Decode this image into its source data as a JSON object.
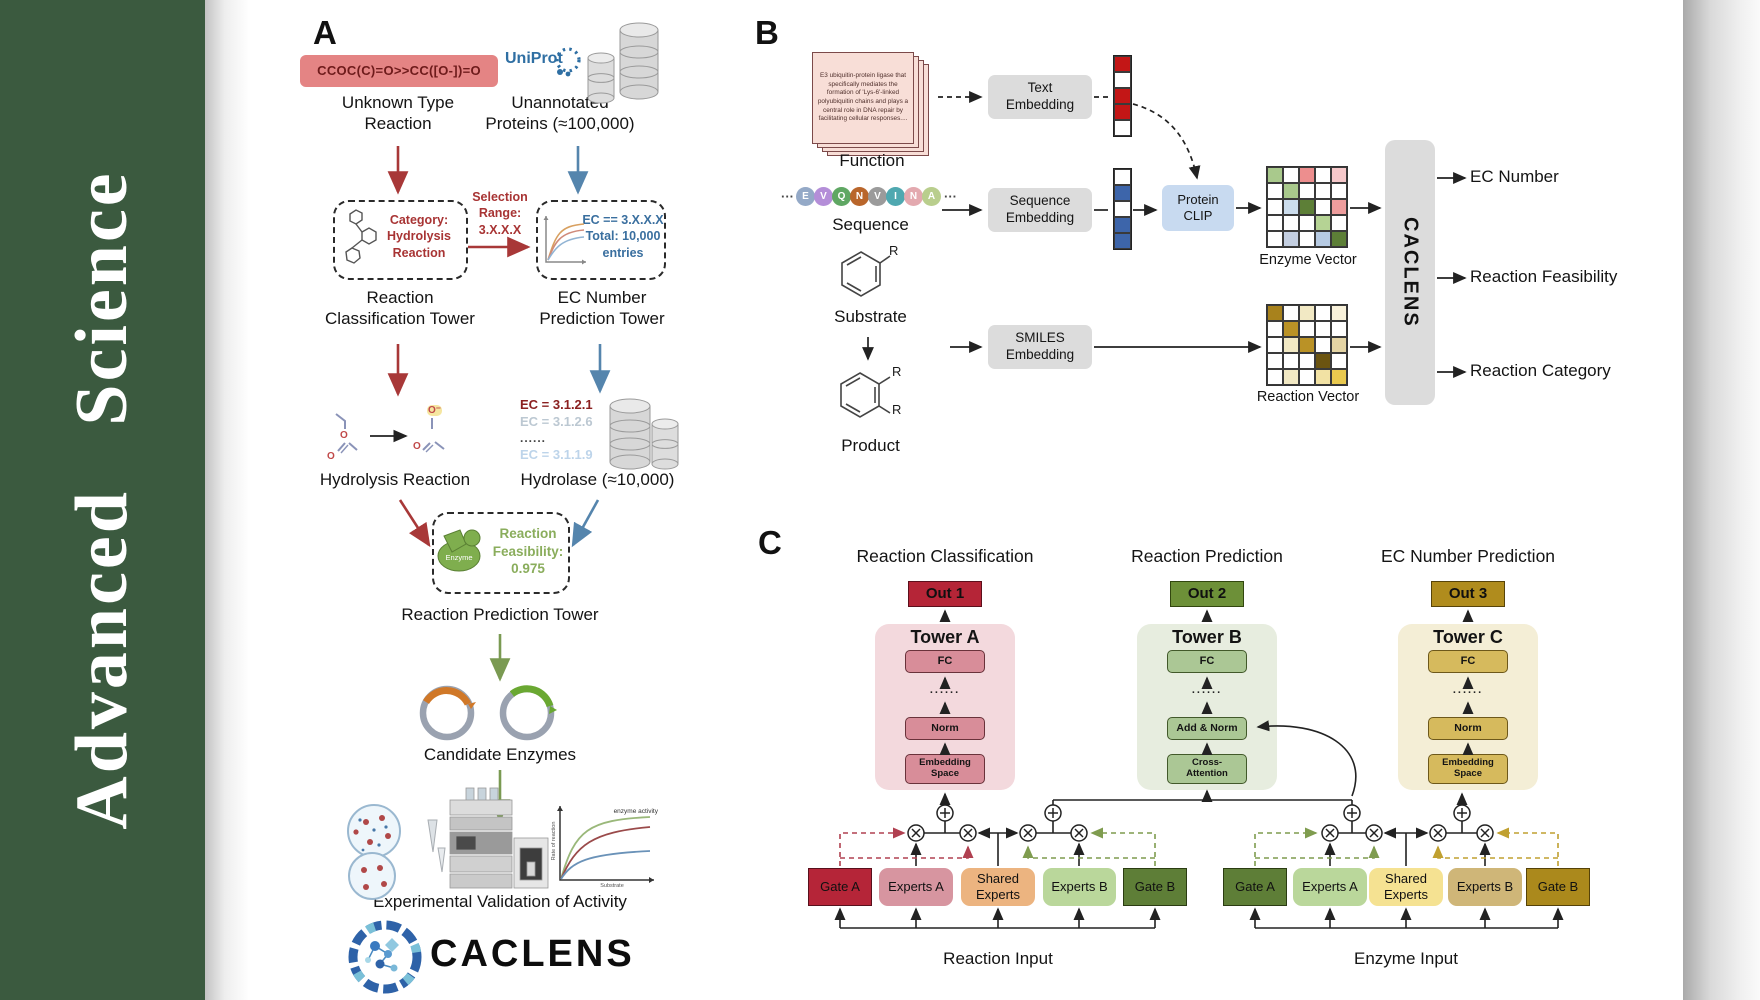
{
  "palette": {
    "banner_green": "#3b5a3f",
    "smiles_red": "#e48484",
    "arrow_red": "#a83838",
    "arrow_blue": "#5585ad",
    "arrow_green": "#7a9a52",
    "uniprot_blue": "#2f6fa3",
    "clip_blue": "#c8daf0",
    "tower_a_pink": "#f3d9dd",
    "tower_b_green": "#e7eddf",
    "tower_c_gold": "#f4eed6",
    "out1_red": "#b52537",
    "out2_green": "#6d9038",
    "out3_gold": "#b08c1d"
  },
  "banner": {
    "title": "Advanced Science"
  },
  "panelA": {
    "label": "A",
    "smiles": "CCOC(C)=O>>CC([O-])=O",
    "uniprot": "UniProt",
    "unknown": "Unknown Type\nReaction",
    "unannotated": "Unannotated\nProteins (≈100,000)",
    "category_box": "Category:\nHydrolysis\nReaction",
    "selection": "Selection\nRange:\n3.X.X.X",
    "ec_box": "EC == 3.X.X.X\nTotal: 10,000\nentries",
    "class_tower": "Reaction\nClassification Tower",
    "ec_tower": "EC Number\nPrediction Tower",
    "ec1": "EC = 3.1.2.1",
    "ec2": "EC = 3.1.2.6",
    "ec_dots": "......",
    "ec3": "EC = 3.1.1.9",
    "hydrolysis": "Hydrolysis Reaction",
    "hydrolase": "Hydrolase (≈10,000)",
    "enzyme": "Enzyme",
    "feasibility": "Reaction\nFeasibility:\n0.975",
    "pred_tower": "Reaction Prediction Tower",
    "candidates": "Candidate Enzymes",
    "validation": "Experimental Validation of Activity",
    "logo": "CACLENS",
    "atom_o": "O",
    "atom_o_minus": "O⁻",
    "chart": {
      "curve": "enzyme activity",
      "y": "Rate of reaction",
      "x": "Substrate"
    }
  },
  "panelB": {
    "label": "B",
    "function_card": "E3 ubiquitin-protein ligase that specifically mediates the formation of 'Lys-6'-linked polyubiquitin chains and plays a central role in DNA repair by facilitating cellular responses....",
    "function_label": "Function",
    "sequence_label": "Sequence",
    "substrate_label": "Substrate",
    "product_label": "Product",
    "ellipsis": "···",
    "r_label": "R",
    "beads": [
      {
        "letter": "E",
        "color": "#94a9c7"
      },
      {
        "letter": "V",
        "color": "#b48ed8"
      },
      {
        "letter": "Q",
        "color": "#5fa763"
      },
      {
        "letter": "N",
        "color": "#b9662b"
      },
      {
        "letter": "V",
        "color": "#9b9b9b"
      },
      {
        "letter": "I",
        "color": "#4fa8b0"
      },
      {
        "letter": "N",
        "color": "#e3a9af"
      },
      {
        "letter": "A",
        "color": "#b9ce8d"
      }
    ],
    "text_embedding": "Text\nEmbedding",
    "sequence_embedding": "Sequence\nEmbedding",
    "smiles_embedding": "SMILES\nEmbedding",
    "protein_clip": "Protein\nCLIP",
    "text_vector": [
      "#c31616",
      "#ffffff",
      "#c31616",
      "#c31616",
      "#ffffff"
    ],
    "sequence_vector": [
      "#ffffff",
      "#3d65aa",
      "#ffffff",
      "#3d65aa",
      "#3d65aa"
    ],
    "enzyme_vector_label": "Enzyme Vector",
    "reaction_vector_label": "Reaction Vector",
    "enzyme_matrix": [
      [
        "#a9c98c",
        "#ffffff",
        "#ed8e8e",
        "#ffffff",
        "#f6c8ca"
      ],
      [
        "#ffffff",
        "#a9c98c",
        "#ffffff",
        "#ffffff",
        "#ffffff"
      ],
      [
        "#ffffff",
        "#ccdded",
        "#5d7f37",
        "#ffffff",
        "#ee9d9d"
      ],
      [
        "#ffffff",
        "#ffffff",
        "#ffffff",
        "#b5d394",
        "#ffffff"
      ],
      [
        "#ffffff",
        "#c4cfe1",
        "#ffffff",
        "#b6cae2",
        "#5d7f37"
      ]
    ],
    "reaction_matrix": [
      [
        "#a8821c",
        "#ffffff",
        "#f2e9c4",
        "#ffffff",
        "#f8f1da"
      ],
      [
        "#ffffff",
        "#ba9226",
        "#ffffff",
        "#ffffff",
        "#ffffff"
      ],
      [
        "#ffffff",
        "#f2e9c4",
        "#ba9226",
        "#ffffff",
        "#e4d4a4"
      ],
      [
        "#ffffff",
        "#ffffff",
        "#ffffff",
        "#6b5410",
        "#ffffff"
      ],
      [
        "#ffffff",
        "#f2e9c4",
        "#ffffff",
        "#f2e2a4",
        "#e9c94f"
      ]
    ],
    "caclens": "CACLENS",
    "outputs": [
      "EC Number",
      "Reaction Feasibility",
      "Reaction Category"
    ]
  },
  "panelC": {
    "label": "C",
    "towers": [
      {
        "title": "Reaction Classification",
        "out": "Out 1",
        "name": "Tower A",
        "fc": "FC",
        "dots": "......",
        "mid": "Norm",
        "base": "Embedding\nSpace"
      },
      {
        "title": "Reaction Prediction",
        "out": "Out 2",
        "name": "Tower B",
        "fc": "FC",
        "dots": "......",
        "mid": "Add & Norm",
        "base": "Cross-\nAttention"
      },
      {
        "title": "EC Number Prediction",
        "out": "Out 3",
        "name": "Tower C",
        "fc": "FC",
        "dots": "......",
        "mid": "Norm",
        "base": "Embedding\nSpace"
      }
    ],
    "groups": [
      {
        "label": "Reaction Input",
        "gate_a": "Gate A",
        "experts_a": "Experts A",
        "shared": "Shared\nExperts",
        "experts_b": "Experts B",
        "gate_b": "Gate B"
      },
      {
        "label": "Enzyme Input",
        "gate_a": "Gate A",
        "experts_a": "Experts A",
        "shared": "Shared\nExperts",
        "experts_b": "Experts B",
        "gate_b": "Gate B"
      }
    ]
  }
}
